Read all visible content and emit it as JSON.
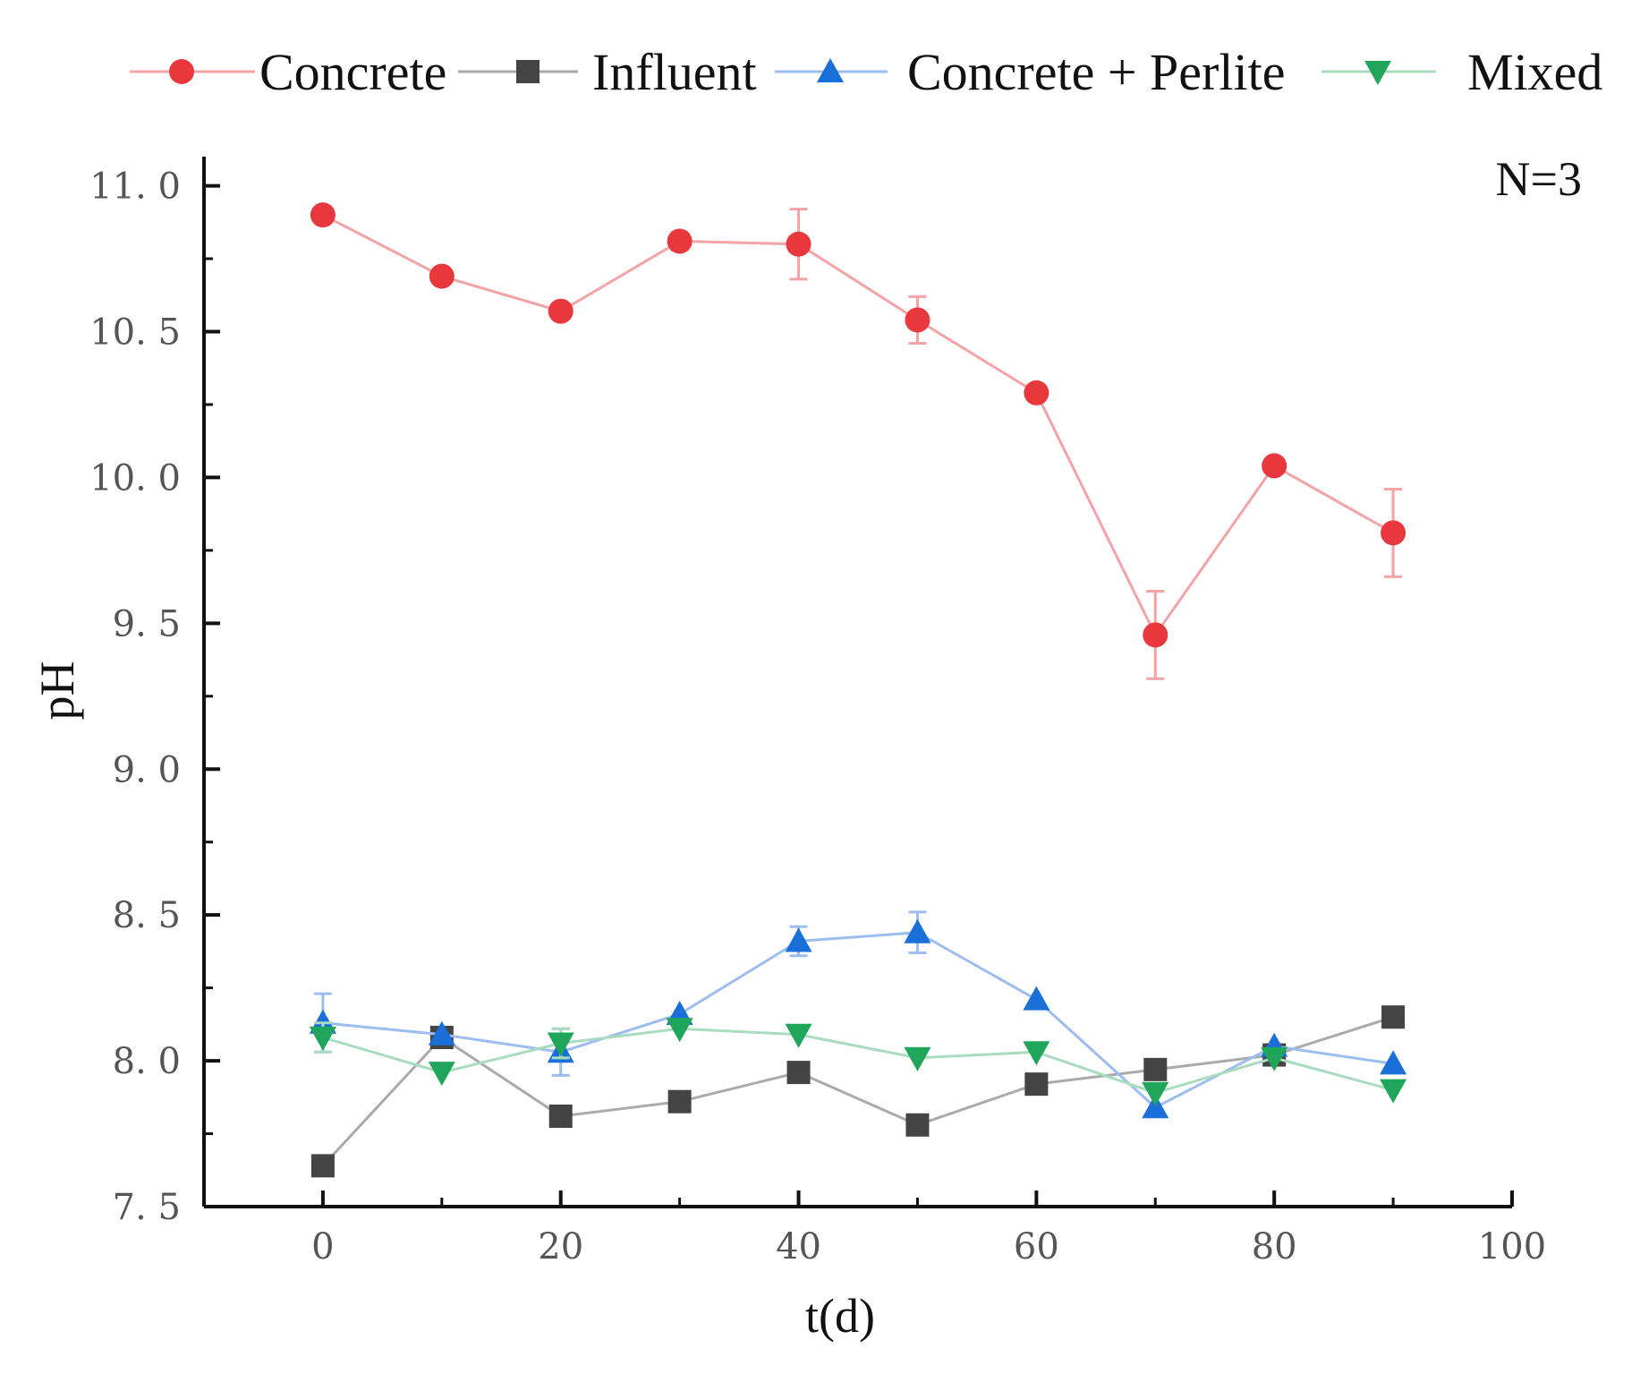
{
  "chart_data": {
    "type": "line",
    "title": "",
    "xlabel": "t(d)",
    "ylabel": "pH",
    "xlim": [
      -10,
      100
    ],
    "ylim": [
      7.5,
      11.1
    ],
    "x_ticks": [
      0,
      20,
      40,
      60,
      80,
      100
    ],
    "y_ticks": [
      7.5,
      8.0,
      8.5,
      9.0,
      9.5,
      10.0,
      10.5,
      11.0
    ],
    "y_tick_labels": [
      "7. 5",
      "8. 0",
      "8. 5",
      "9. 0",
      "9. 5",
      "10. 0",
      "10. 5",
      "11. 0"
    ],
    "x_tick_labels": [
      "0",
      "20",
      "40",
      "60",
      "80",
      "100"
    ],
    "grid": false,
    "legend_position": "top",
    "annotation": "N=3",
    "x": [
      0,
      10,
      20,
      30,
      40,
      50,
      60,
      70,
      80,
      90
    ],
    "series": [
      {
        "name": "Concrete",
        "color": "#e8383d",
        "line_color": "#f4a3a6",
        "marker": "circle",
        "values": [
          10.9,
          10.69,
          10.57,
          10.81,
          10.8,
          10.54,
          10.29,
          9.46,
          10.04,
          9.81
        ],
        "errors": [
          0.0,
          0.0,
          0.0,
          0.03,
          0.12,
          0.08,
          0.0,
          0.15,
          0.0,
          0.15
        ]
      },
      {
        "name": "Influent",
        "color": "#444444",
        "line_color": "#aaaaaa",
        "marker": "square",
        "values": [
          7.64,
          8.08,
          7.81,
          7.86,
          7.96,
          7.78,
          7.92,
          7.97,
          8.02,
          8.15
        ],
        "errors": [
          0,
          0,
          0,
          0,
          0,
          0,
          0,
          0,
          0,
          0
        ]
      },
      {
        "name": "Concrete + Perlite",
        "color": "#1a6fd8",
        "line_color": "#9dbdf0",
        "marker": "triangle-up",
        "values": [
          8.13,
          8.09,
          8.03,
          8.16,
          8.41,
          8.44,
          8.21,
          7.84,
          8.05,
          7.99
        ],
        "errors": [
          0.1,
          0.0,
          0.08,
          0.0,
          0.05,
          0.07,
          0.0,
          0.0,
          0.0,
          0.0
        ]
      },
      {
        "name": "Mixed",
        "color": "#1fa65b",
        "line_color": "#a9dcbf",
        "marker": "triangle-down",
        "values": [
          8.08,
          7.96,
          8.06,
          8.11,
          8.09,
          8.01,
          8.03,
          7.89,
          8.01,
          7.9
        ],
        "errors": [
          0.05,
          0,
          0.05,
          0,
          0,
          0,
          0,
          0,
          0,
          0
        ]
      }
    ]
  }
}
